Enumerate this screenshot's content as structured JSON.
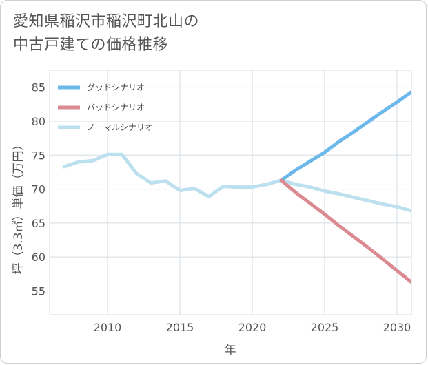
{
  "title_lines": [
    "愛知県稲沢市稲沢町北山の",
    "中古戸建ての価格推移"
  ],
  "chart_data": {
    "type": "line",
    "xlabel": "年",
    "ylabel": "坪（3.3㎡）単価（万円）",
    "xlim": [
      2006,
      2031
    ],
    "ylim": [
      51.5,
      87.5
    ],
    "x_ticks": [
      2010,
      2015,
      2020,
      2025,
      2030
    ],
    "y_ticks": [
      55,
      60,
      65,
      70,
      75,
      80,
      85
    ],
    "grid": true,
    "legend_position": "top-left",
    "series": [
      {
        "name": "グッドシナリオ",
        "color": "#6cb8ea",
        "x": [
          2022,
          2023,
          2024,
          2025,
          2026,
          2027,
          2028,
          2029,
          2030,
          2031
        ],
        "y": [
          71.3,
          72.8,
          74.1,
          75.4,
          77.0,
          78.4,
          79.9,
          81.4,
          82.8,
          84.3
        ]
      },
      {
        "name": "バッドシナリオ",
        "color": "#dc8a92",
        "x": [
          2022,
          2023,
          2024,
          2025,
          2026,
          2027,
          2028,
          2029,
          2030,
          2031
        ],
        "y": [
          71.3,
          69.5,
          67.9,
          66.3,
          64.6,
          63.0,
          61.4,
          59.7,
          58.0,
          56.3
        ]
      },
      {
        "name": "ノーマルシナリオ",
        "color": "#bde0ef",
        "x": [
          2007,
          2008,
          2009,
          2010,
          2011,
          2012,
          2013,
          2014,
          2015,
          2016,
          2017,
          2018,
          2019,
          2020,
          2021,
          2022,
          2023,
          2024,
          2025,
          2026,
          2027,
          2028,
          2029,
          2030,
          2031
        ],
        "y": [
          73.3,
          74.0,
          74.2,
          75.1,
          75.1,
          72.3,
          70.9,
          71.2,
          69.8,
          70.1,
          68.9,
          70.4,
          70.3,
          70.3,
          70.7,
          71.3,
          70.7,
          70.3,
          69.7,
          69.3,
          68.8,
          68.3,
          67.8,
          67.4,
          66.8
        ]
      }
    ]
  }
}
